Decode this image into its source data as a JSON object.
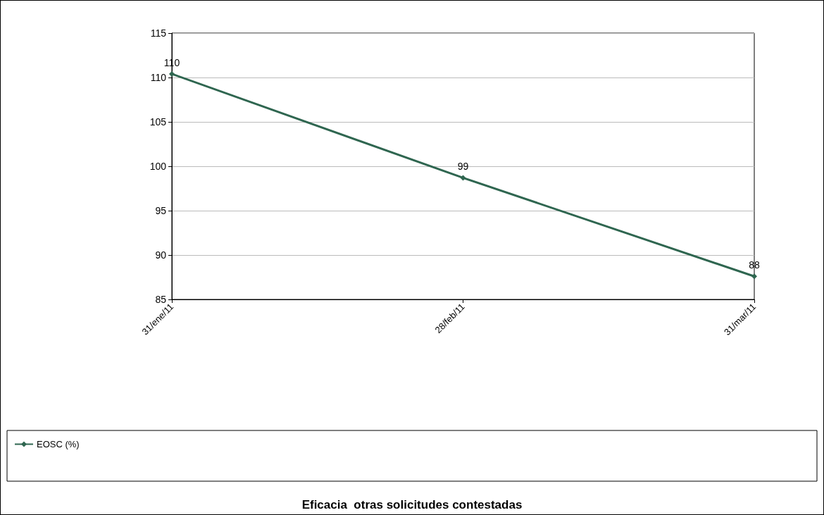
{
  "chart_data": {
    "type": "line",
    "title": "Eficacia  otras solicitudes contestadas",
    "categories": [
      "31/ene/11",
      "28/feb/11",
      "31/mar/11"
    ],
    "series": [
      {
        "name": "EOSC (%)",
        "color": "#2f6650",
        "values": [
          110.4,
          98.7,
          87.6
        ],
        "value_labels": [
          "110",
          "99",
          "88"
        ]
      }
    ],
    "ylim": [
      85,
      115
    ],
    "yticks": [
      85,
      90,
      95,
      100,
      105,
      110,
      115
    ],
    "grid": "y",
    "legend": "bottom left",
    "marker": "diamond",
    "line_style": "solid"
  }
}
